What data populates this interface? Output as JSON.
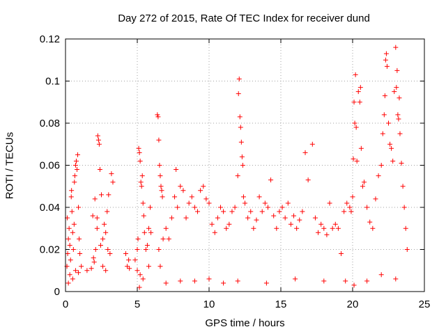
{
  "chart_data": {
    "type": "scatter",
    "title": "Day 272 of 2015, Rate Of TEC Index for receiver dund",
    "xlabel": "GPS time / hours",
    "ylabel": "ROTI / TECUs",
    "xlim": [
      0,
      25
    ],
    "ylim": [
      0,
      0.12
    ],
    "xticks": [
      0,
      5,
      10,
      15,
      20,
      25
    ],
    "yticks": [
      0,
      0.02,
      0.04,
      0.06,
      0.08,
      0.1,
      0.12
    ],
    "xtick_labels": [
      "0",
      "5",
      "10",
      "15",
      "20",
      "25"
    ],
    "ytick_labels": [
      "0",
      "0.02",
      "0.04",
      "0.06",
      "0.08",
      "0.1",
      "0.12"
    ],
    "grid": true,
    "marker": "+",
    "color": "#ff0000",
    "series": [
      {
        "points": [
          [
            0.1,
            0.012
          ],
          [
            0.15,
            0.018
          ],
          [
            0.2,
            0.025
          ],
          [
            0.25,
            0.03
          ],
          [
            0.3,
            0.022
          ],
          [
            0.35,
            0.015
          ],
          [
            0.4,
            0.045
          ],
          [
            0.45,
            0.038
          ],
          [
            0.5,
            0.028
          ],
          [
            0.55,
            0.02
          ],
          [
            0.6,
            0.032
          ],
          [
            0.65,
            0.055
          ],
          [
            0.7,
            0.06
          ],
          [
            0.75,
            0.062
          ],
          [
            0.8,
            0.058
          ],
          [
            0.85,
            0.065
          ],
          [
            0.9,
            0.04
          ],
          [
            0.95,
            0.025
          ],
          [
            1.0,
            0.018
          ],
          [
            0.3,
            0.008
          ],
          [
            0.5,
            0.006
          ],
          [
            0.7,
            0.01
          ],
          [
            0.9,
            0.009
          ],
          [
            0.2,
            0.004
          ],
          [
            0.12,
            0.035
          ],
          [
            0.42,
            0.048
          ],
          [
            0.62,
            0.052
          ],
          [
            1.1,
            0.012
          ],
          [
            1.5,
            0.01
          ],
          [
            1.8,
            0.011
          ],
          [
            2.0,
            0.014
          ],
          [
            2.1,
            0.02
          ],
          [
            2.2,
            0.03
          ],
          [
            2.25,
            0.074
          ],
          [
            2.3,
            0.072
          ],
          [
            2.35,
            0.07
          ],
          [
            2.4,
            0.058
          ],
          [
            2.5,
            0.046
          ],
          [
            2.2,
            0.035
          ],
          [
            2.6,
            0.025
          ],
          [
            2.7,
            0.032
          ],
          [
            2.8,
            0.028
          ],
          [
            2.9,
            0.038
          ],
          [
            3.0,
            0.046
          ],
          [
            2.6,
            0.012
          ],
          [
            2.8,
            0.01
          ],
          [
            3.1,
            0.018
          ],
          [
            3.2,
            0.056
          ],
          [
            3.3,
            0.052
          ],
          [
            1.9,
            0.036
          ],
          [
            1.95,
            0.016
          ],
          [
            2.05,
            0.044
          ],
          [
            2.45,
            0.022
          ],
          [
            2.95,
            0.02
          ],
          [
            4.2,
            0.018
          ],
          [
            4.3,
            0.012
          ],
          [
            4.4,
            0.015
          ],
          [
            4.45,
            0.011
          ],
          [
            4.85,
            0.015
          ],
          [
            5.0,
            0.02
          ],
          [
            5.05,
            0.025
          ],
          [
            5.1,
            0.068
          ],
          [
            5.15,
            0.066
          ],
          [
            5.2,
            0.062
          ],
          [
            5.25,
            0.052
          ],
          [
            5.3,
            0.05
          ],
          [
            5.35,
            0.055
          ],
          [
            5.4,
            0.042
          ],
          [
            5.45,
            0.036
          ],
          [
            5.5,
            0.028
          ],
          [
            5.6,
            0.02
          ],
          [
            5.7,
            0.022
          ],
          [
            5.8,
            0.03
          ],
          [
            5.9,
            0.04
          ],
          [
            5.95,
            0.028
          ],
          [
            5.0,
            0.01
          ],
          [
            5.2,
            0.008
          ],
          [
            5.4,
            0.006
          ],
          [
            5.15,
            0.002
          ],
          [
            5.8,
            0.012
          ],
          [
            6.4,
            0.084
          ],
          [
            6.45,
            0.083
          ],
          [
            6.5,
            0.072
          ],
          [
            6.55,
            0.06
          ],
          [
            6.6,
            0.055
          ],
          [
            6.65,
            0.05
          ],
          [
            6.7,
            0.048
          ],
          [
            6.75,
            0.045
          ],
          [
            6.5,
            0.02
          ],
          [
            6.6,
            0.012
          ],
          [
            6.8,
            0.025
          ],
          [
            7.0,
            0.03
          ],
          [
            7.2,
            0.025
          ],
          [
            7.4,
            0.035
          ],
          [
            7.6,
            0.045
          ],
          [
            7.7,
            0.058
          ],
          [
            7.8,
            0.04
          ],
          [
            8.0,
            0.05
          ],
          [
            8.2,
            0.048
          ],
          [
            8.4,
            0.035
          ],
          [
            8.6,
            0.042
          ],
          [
            8.8,
            0.045
          ],
          [
            9.0,
            0.04
          ],
          [
            9.2,
            0.038
          ],
          [
            9.4,
            0.048
          ],
          [
            9.6,
            0.05
          ],
          [
            9.8,
            0.044
          ],
          [
            10.0,
            0.042
          ],
          [
            10.2,
            0.032
          ],
          [
            10.4,
            0.028
          ],
          [
            10.6,
            0.035
          ],
          [
            10.8,
            0.04
          ],
          [
            11.0,
            0.038
          ],
          [
            11.2,
            0.03
          ],
          [
            11.4,
            0.032
          ],
          [
            11.6,
            0.038
          ],
          [
            11.8,
            0.04
          ],
          [
            12.0,
            0.055
          ],
          [
            12.05,
            0.094
          ],
          [
            12.1,
            0.101
          ],
          [
            12.15,
            0.083
          ],
          [
            12.2,
            0.078
          ],
          [
            12.25,
            0.071
          ],
          [
            12.3,
            0.064
          ],
          [
            12.35,
            0.06
          ],
          [
            12.4,
            0.045
          ],
          [
            12.5,
            0.042
          ],
          [
            12.7,
            0.035
          ],
          [
            12.9,
            0.038
          ],
          [
            13.1,
            0.03
          ],
          [
            13.3,
            0.034
          ],
          [
            13.5,
            0.045
          ],
          [
            13.7,
            0.038
          ],
          [
            13.9,
            0.042
          ],
          [
            14.1,
            0.04
          ],
          [
            14.3,
            0.053
          ],
          [
            14.5,
            0.036
          ],
          [
            14.7,
            0.03
          ],
          [
            14.9,
            0.038
          ],
          [
            15.1,
            0.04
          ],
          [
            15.3,
            0.035
          ],
          [
            15.5,
            0.042
          ],
          [
            15.7,
            0.032
          ],
          [
            15.9,
            0.036
          ],
          [
            16.1,
            0.03
          ],
          [
            16.3,
            0.034
          ],
          [
            16.5,
            0.038
          ],
          [
            16.7,
            0.066
          ],
          [
            16.9,
            0.053
          ],
          [
            17.2,
            0.07
          ],
          [
            17.4,
            0.035
          ],
          [
            17.6,
            0.028
          ],
          [
            17.8,
            0.032
          ],
          [
            18.0,
            0.03
          ],
          [
            18.2,
            0.027
          ],
          [
            18.4,
            0.042
          ],
          [
            18.6,
            0.03
          ],
          [
            18.8,
            0.032
          ],
          [
            19.0,
            0.03
          ],
          [
            19.2,
            0.018
          ],
          [
            19.4,
            0.038
          ],
          [
            19.6,
            0.042
          ],
          [
            19.8,
            0.04
          ],
          [
            19.9,
            0.038
          ],
          [
            20.0,
            0.045
          ],
          [
            20.05,
            0.063
          ],
          [
            20.1,
            0.09
          ],
          [
            20.15,
            0.08
          ],
          [
            20.2,
            0.103
          ],
          [
            20.25,
            0.078
          ],
          [
            20.3,
            0.062
          ],
          [
            20.4,
            0.095
          ],
          [
            20.5,
            0.09
          ],
          [
            20.55,
            0.097
          ],
          [
            20.6,
            0.068
          ],
          [
            20.7,
            0.05
          ],
          [
            20.8,
            0.052
          ],
          [
            21.0,
            0.04
          ],
          [
            21.2,
            0.033
          ],
          [
            21.4,
            0.03
          ],
          [
            21.6,
            0.044
          ],
          [
            21.8,
            0.055
          ],
          [
            22.0,
            0.06
          ],
          [
            22.1,
            0.075
          ],
          [
            22.2,
            0.084
          ],
          [
            22.25,
            0.093
          ],
          [
            22.3,
            0.11
          ],
          [
            22.35,
            0.113
          ],
          [
            22.4,
            0.107
          ],
          [
            22.5,
            0.08
          ],
          [
            22.6,
            0.07
          ],
          [
            22.7,
            0.068
          ],
          [
            22.8,
            0.062
          ],
          [
            22.9,
            0.095
          ],
          [
            23.0,
            0.116
          ],
          [
            23.05,
            0.097
          ],
          [
            23.1,
            0.105
          ],
          [
            23.15,
            0.084
          ],
          [
            23.2,
            0.082
          ],
          [
            23.25,
            0.092
          ],
          [
            23.3,
            0.075
          ],
          [
            23.4,
            0.061
          ],
          [
            23.5,
            0.05
          ],
          [
            23.6,
            0.04
          ],
          [
            23.7,
            0.03
          ],
          [
            23.8,
            0.02
          ],
          [
            19.5,
            0.005
          ],
          [
            20.1,
            0.003
          ],
          [
            21.0,
            0.005
          ],
          [
            22.0,
            0.008
          ],
          [
            23.0,
            0.006
          ],
          [
            18.0,
            0.005
          ],
          [
            16.0,
            0.006
          ],
          [
            14.0,
            0.004
          ],
          [
            12.0,
            0.005
          ],
          [
            10.0,
            0.006
          ],
          [
            8.0,
            0.005
          ],
          [
            7.0,
            0.004
          ],
          [
            9.0,
            0.005
          ],
          [
            11.0,
            0.004
          ]
        ]
      }
    ]
  }
}
